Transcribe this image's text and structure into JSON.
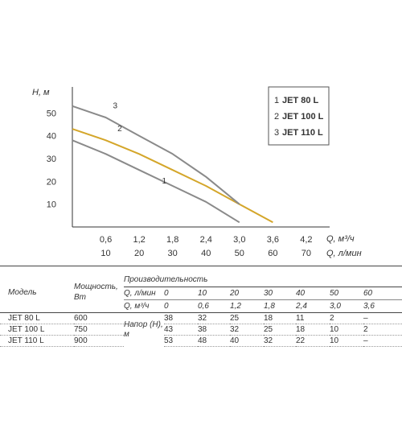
{
  "chart_data": {
    "type": "line",
    "ylabel": "H, м",
    "xlabel_primary": "Q, м³/ч",
    "xlabel_secondary": "Q, л/мин",
    "x_m3h": [
      0,
      0.6,
      1.2,
      1.8,
      2.4,
      3.0,
      3.6,
      4.2
    ],
    "x_ticks_primary": [
      "0,6",
      "1,2",
      "1,8",
      "2,4",
      "3,0",
      "3,6",
      "4,2"
    ],
    "x_ticks_secondary": [
      "10",
      "20",
      "30",
      "40",
      "50",
      "60",
      "70"
    ],
    "y_ticks": [
      "10",
      "20",
      "30",
      "40",
      "50"
    ],
    "xlim_m3h": [
      0,
      4.62
    ],
    "ylim": [
      0,
      60
    ],
    "series": [
      {
        "name": "JET 80 L",
        "label": "1",
        "color": "#8a8a8a",
        "x": [
          0,
          0.6,
          1.2,
          1.8,
          2.4,
          3.0
        ],
        "y": [
          38,
          32,
          25,
          18,
          11,
          2
        ]
      },
      {
        "name": "JET 100 L",
        "label": "2",
        "color": "#d4a62a",
        "x": [
          0,
          0.6,
          1.2,
          1.8,
          2.4,
          3.0,
          3.6
        ],
        "y": [
          43,
          38,
          32,
          25,
          18,
          10,
          2
        ]
      },
      {
        "name": "JET 110 L",
        "label": "3",
        "color": "#8a8a8a",
        "x": [
          0,
          0.6,
          1.2,
          1.8,
          2.4,
          3.0
        ],
        "y": [
          53,
          48,
          40,
          32,
          22,
          10
        ]
      }
    ],
    "legend": [
      {
        "num": "1",
        "name": "JET 80 L"
      },
      {
        "num": "2",
        "name": "JET 100 L"
      },
      {
        "num": "3",
        "name": "JET 110 L"
      }
    ],
    "grid": false,
    "legend_position": "top-right"
  },
  "table": {
    "col_model": "Модель",
    "col_power": "Мощность, Вт",
    "col_perf": "Производительность",
    "row_q_lmin_label": "Q, л/мин",
    "row_q_m3h_label": "Q, м³/ч",
    "head_label": "Напор (Н), м",
    "q_lmin": [
      "0",
      "10",
      "20",
      "30",
      "40",
      "50",
      "60"
    ],
    "q_m3h": [
      "0",
      "0,6",
      "1,2",
      "1,8",
      "2,4",
      "3,0",
      "3,6"
    ],
    "rows": [
      {
        "model": "JET 80 L",
        "power": "600",
        "values": [
          "38",
          "32",
          "25",
          "18",
          "11",
          "2",
          "–"
        ]
      },
      {
        "model": "JET 100 L",
        "power": "750",
        "values": [
          "43",
          "38",
          "32",
          "25",
          "18",
          "10",
          "2"
        ]
      },
      {
        "model": "JET 110 L",
        "power": "900",
        "values": [
          "53",
          "48",
          "40",
          "32",
          "22",
          "10",
          "–"
        ]
      }
    ]
  }
}
